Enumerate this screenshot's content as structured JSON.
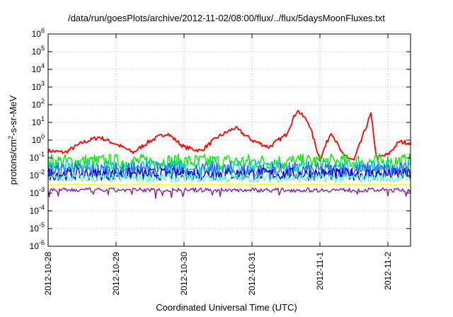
{
  "chart_data": {
    "type": "line",
    "title": "/data/run/goesPlots/archive/2012-11-02/08:00/flux/../flux/5daysMoonFluxes.txt",
    "xlabel": "Coordinated Universal Time (UTC)",
    "ylabel": {
      "prefix": "protons/cm",
      "sup": "2",
      "suffix": "-s-sr-MeV"
    },
    "yscale": "log",
    "ylim": [
      "1e-6",
      "1e6"
    ],
    "xlim": [
      "2012-10-28T00:00",
      "2012-11-02T08:00"
    ],
    "grid": true,
    "xticks": [
      {
        "date": "2012-10-28T00:00",
        "label": "2012-10-28"
      },
      {
        "date": "2012-10-29T00:00",
        "label": "2012-10-29"
      },
      {
        "date": "2012-10-30T00:00",
        "label": "2012-10-30"
      },
      {
        "date": "2012-10-31T00:00",
        "label": "2012-10-31"
      },
      {
        "date": "2012-11-01T00:00",
        "label": "2012-11-1"
      },
      {
        "date": "2012-11-02T00:00",
        "label": "2012-11-2"
      }
    ],
    "yticks": [
      {
        "exp": "-6",
        "label": "10"
      },
      {
        "exp": "-5",
        "label": "10"
      },
      {
        "exp": "-4",
        "label": "10"
      },
      {
        "exp": "-3",
        "label": "10"
      },
      {
        "exp": "-2",
        "label": "10"
      },
      {
        "exp": "-1",
        "label": "10"
      },
      {
        "exp": "0",
        "label": "10"
      },
      {
        "exp": "1",
        "label": "10"
      },
      {
        "exp": "2",
        "label": "10"
      },
      {
        "exp": "3",
        "label": "10"
      },
      {
        "exp": "4",
        "label": "10"
      },
      {
        "exp": "5",
        "label": "10"
      },
      {
        "exp": "6",
        "label": "10"
      }
    ],
    "series": [
      {
        "color": "#ff0000",
        "noise": 0.12,
        "x": [
          "2012-10-28T00:00",
          "2012-10-28T06:00",
          "2012-10-28T12:00",
          "2012-10-28T18:00",
          "2012-10-29T00:00",
          "2012-10-29T06:00",
          "2012-10-29T12:00",
          "2012-10-29T18:00",
          "2012-10-30T00:00",
          "2012-10-30T06:00",
          "2012-10-30T12:00",
          "2012-10-30T18:00",
          "2012-10-31T00:00",
          "2012-10-31T06:00",
          "2012-10-31T12:00",
          "2012-10-31T16:00",
          "2012-10-31T20:00",
          "2012-11-01T00:00",
          "2012-11-01T04:00",
          "2012-11-01T08:00",
          "2012-11-01T12:00",
          "2012-11-01T16:00",
          "2012-11-01T18:00",
          "2012-11-01T20:00",
          "2012-11-02T00:00",
          "2012-11-02T04:00",
          "2012-11-02T08:00"
        ],
        "y": [
          0.25,
          0.2,
          0.7,
          1.5,
          0.6,
          0.2,
          0.9,
          2.5,
          0.4,
          0.25,
          1.5,
          5.0,
          1.0,
          0.4,
          2.0,
          50.0,
          10.0,
          0.08,
          3.0,
          0.15,
          0.07,
          4.0,
          30.0,
          0.1,
          0.15,
          0.8,
          0.7
        ]
      },
      {
        "color": "#00ee00",
        "noise": 0.45,
        "x": [
          "2012-10-28T00:00",
          "2012-11-02T08:00"
        ],
        "y": [
          0.06,
          0.06
        ]
      },
      {
        "color": "#00cccc",
        "noise": 0.4,
        "x": [
          "2012-10-28T00:00",
          "2012-11-02T08:00"
        ],
        "y": [
          0.03,
          0.03
        ]
      },
      {
        "color": "#3366ff",
        "noise": 0.5,
        "x": [
          "2012-10-28T00:00",
          "2012-11-02T08:00"
        ],
        "y": [
          0.018,
          0.018
        ]
      },
      {
        "color": "#0000dd",
        "noise": 0.35,
        "x": [
          "2012-10-28T00:00",
          "2012-11-02T08:00"
        ],
        "y": [
          0.012,
          0.012
        ]
      },
      {
        "color": "#66ffcc",
        "noise": 0.25,
        "x": [
          "2012-10-28T00:00",
          "2012-11-02T08:00"
        ],
        "y": [
          0.007,
          0.007
        ]
      },
      {
        "color": "#ffff00",
        "noise": 0.05,
        "x": [
          "2012-10-28T00:00",
          "2012-11-02T08:00"
        ],
        "y": [
          0.003,
          0.003
        ]
      },
      {
        "color": "#882288",
        "noise": 0.12,
        "x": [
          "2012-10-28T00:00",
          "2012-11-02T08:00"
        ],
        "y": [
          0.0015,
          0.0015
        ]
      }
    ]
  }
}
